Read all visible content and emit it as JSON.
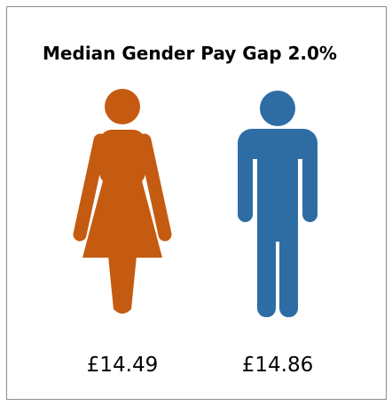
{
  "header": {
    "title": "Median Gender Pay Gap 2.0%"
  },
  "figures": [
    {
      "label": "£14.49"
    },
    {
      "label": "£14.86"
    }
  ]
}
